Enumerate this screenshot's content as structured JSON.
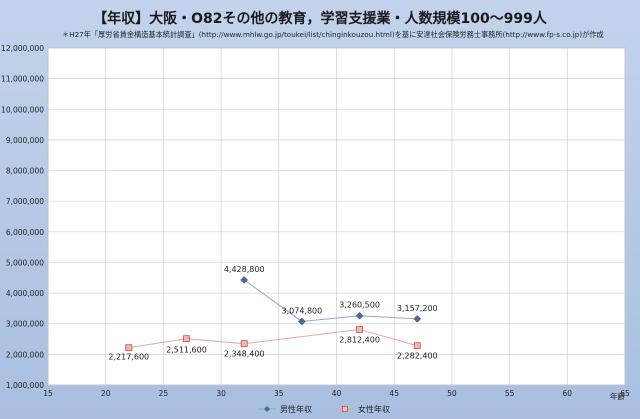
{
  "title": "【年収】大阪・O82その他の教育，学習支援業・人数規模100〜999人",
  "source_note": "＊H27年「厚労省賃金構造基本統計調査」(http://www.mhlw.go.jp/toukei/list/chinginkouzou.html)を基に安達社会保険労務士事務所(http://www.fp-s.co.jp)が作成",
  "chart_data": {
    "type": "line",
    "title": "【年収】大阪・O82その他の教育，学習支援業・人数規模100〜999人",
    "xlabel": "年齢",
    "ylabel": "",
    "xlim": [
      15,
      65
    ],
    "ylim": [
      1000000,
      12000000
    ],
    "x_ticks": [
      "15",
      "20",
      "25",
      "30",
      "35",
      "40",
      "45",
      "50",
      "55",
      "60",
      "65"
    ],
    "y_ticks": [
      "1,000,000",
      "2,000,000",
      "3,000,000",
      "4,000,000",
      "5,000,000",
      "6,000,000",
      "7,000,000",
      "8,000,000",
      "9,000,000",
      "10,000,000",
      "11,000,000",
      "12,000,000"
    ],
    "grid": true,
    "legend": "bottom",
    "series": [
      {
        "name": "男性年収",
        "color": "#4a6b9a",
        "marker": "diamond",
        "x": [
          32,
          37,
          42,
          47
        ],
        "values": [
          4428800,
          3074800,
          3260500,
          3157200
        ],
        "labels": [
          "4,428,800",
          "3,074,800",
          "3,260,500",
          "3,157,200"
        ]
      },
      {
        "name": "女性年収",
        "color": "#c0504d",
        "marker": "square",
        "x": [
          22,
          27,
          32,
          42,
          47
        ],
        "values": [
          2217600,
          2511600,
          2348400,
          2812400,
          2282400
        ],
        "labels": [
          "2,217,600",
          "2,511,600",
          "2,348,400",
          "2,812,400",
          "2,282,400"
        ]
      }
    ]
  }
}
